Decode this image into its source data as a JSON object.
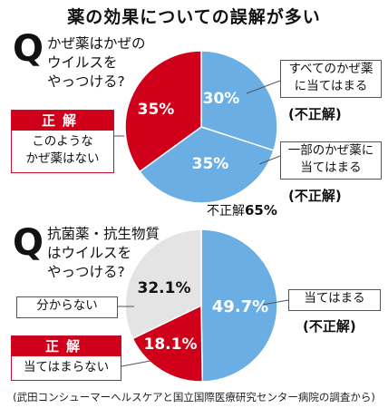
{
  "title": "薬の効果についての誤解が多い",
  "source": "(武田コンシューマーヘルスケアと国立国際医療研究センター病院の調査から)",
  "colors": {
    "blue": "#6aaee3",
    "red": "#d0001b",
    "gray": "#e4e4e4",
    "ink": "#111111"
  },
  "chart_data": [
    {
      "type": "pie",
      "question": "かぜ薬はかぜの\nウイルスを\nやっつける?",
      "slices": [
        {
          "label": "すべてのかぜ薬\nに当てはまる",
          "value": 30,
          "display": "30%",
          "color": "#6aaee3",
          "tag": "(不正解)"
        },
        {
          "label": "一部のかぜ薬に\n当てはまる",
          "value": 35,
          "display": "35%",
          "color": "#6aaee3",
          "tag": "(不正解)"
        },
        {
          "label": "このような\nかぜ薬はない",
          "value": 35,
          "display": "35%",
          "color": "#d0001b",
          "tag": "正解"
        }
      ],
      "incorrect_total_label": "不正解",
      "incorrect_total_value": "65%"
    },
    {
      "type": "pie",
      "question": "抗菌薬・抗生物質\nはウイルスを\nやっつける?",
      "slices": [
        {
          "label": "当てはまる",
          "value": 49.7,
          "display": "49.7%",
          "color": "#6aaee3",
          "tag": "(不正解)"
        },
        {
          "label": "当てはまらない",
          "value": 18.1,
          "display": "18.1%",
          "color": "#d0001b",
          "tag": "正解"
        },
        {
          "label": "分からない",
          "value": 32.1,
          "display": "32.1%",
          "color": "#e4e4e4",
          "tag": ""
        }
      ]
    }
  ]
}
